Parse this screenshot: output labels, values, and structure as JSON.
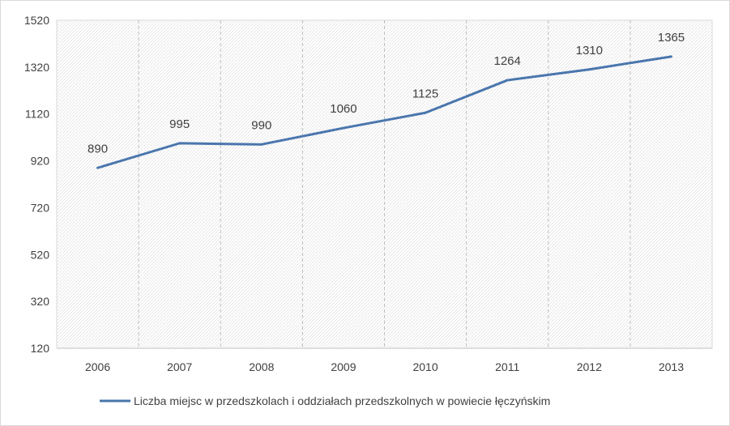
{
  "chart_data": {
    "type": "line",
    "categories": [
      "2006",
      "2007",
      "2008",
      "2009",
      "2010",
      "2011",
      "2012",
      "2013"
    ],
    "series": [
      {
        "name": "Liczba miejsc w przedszkolach i oddziałach przedszkolnych w powiecie łęczyńskim",
        "values": [
          890,
          995,
          990,
          1060,
          1125,
          1264,
          1310,
          1365
        ],
        "labels": [
          "890",
          "995",
          "990",
          "1060",
          "1125",
          "1264",
          "1310",
          "1365"
        ],
        "color": "#4a76ad"
      }
    ],
    "yticks": [
      "1520",
      "1320",
      "1120",
      "920",
      "720",
      "520",
      "320",
      "120"
    ],
    "ylim": [
      120,
      1520
    ],
    "ystep": 200,
    "grid": "hatched plot area with vertical dashed gridlines",
    "legend": "bottom",
    "title": "",
    "xlabel": "",
    "ylabel": ""
  }
}
